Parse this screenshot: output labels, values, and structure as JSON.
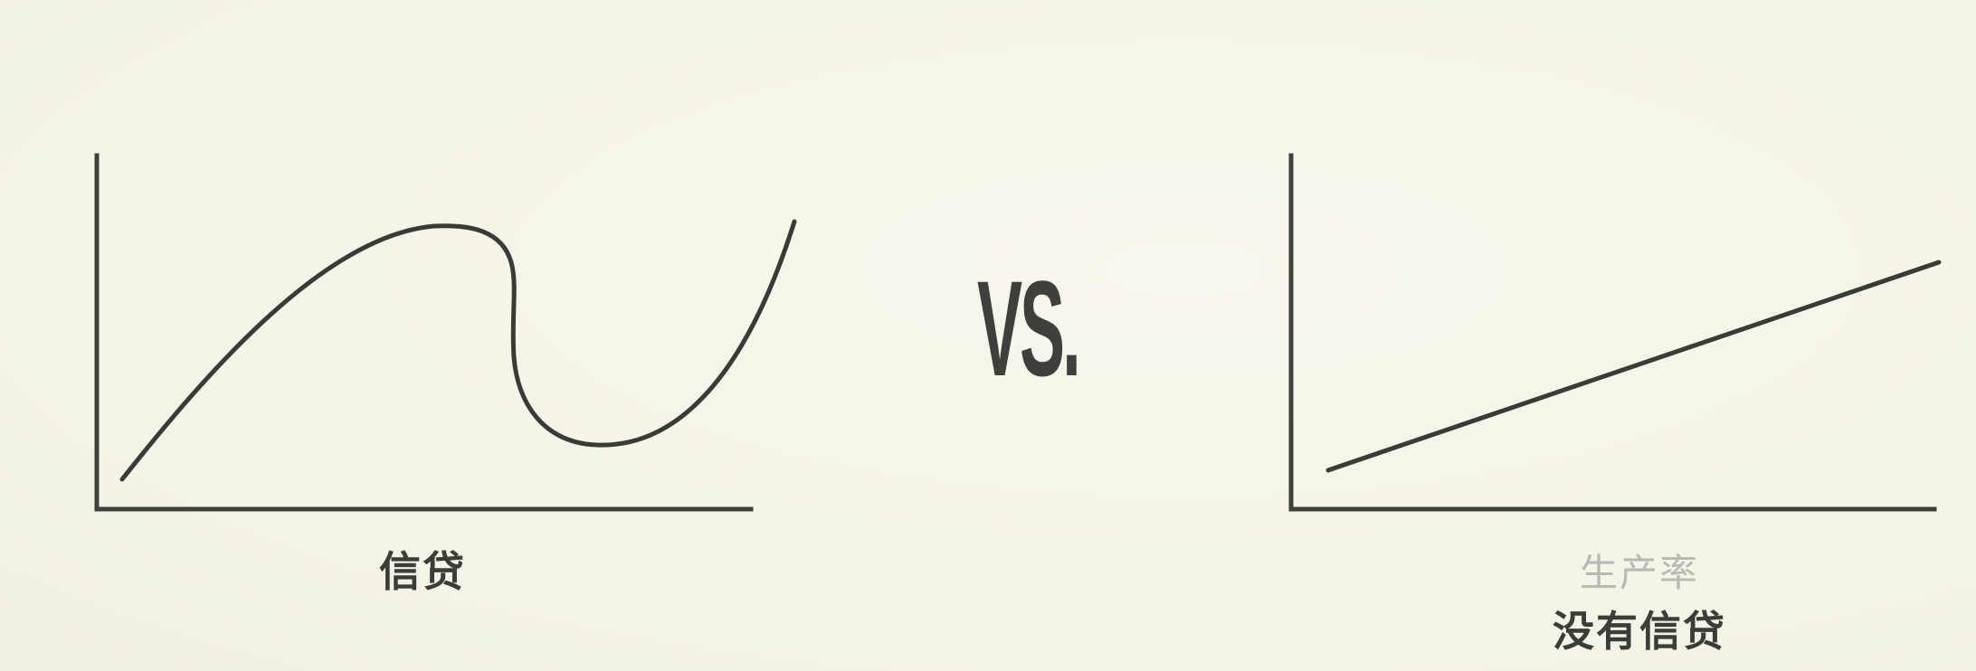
{
  "left_diagram": {
    "label": "信贷",
    "curve_icon": "wave-curve-icon"
  },
  "comparison": {
    "vs_text": "VS."
  },
  "right_diagram": {
    "faded_label": "生产率",
    "label": "没有信贷",
    "line_icon": "straight-line-icon"
  },
  "colors": {
    "background": "#f6f5ea",
    "ink": "#3a3a37",
    "faded_text": "#b9b9b0"
  }
}
